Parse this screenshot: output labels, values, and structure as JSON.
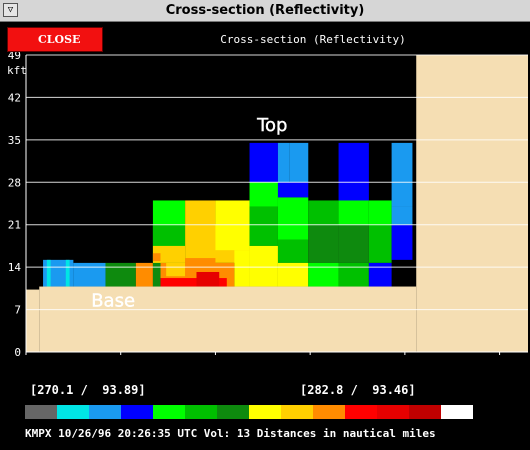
{
  "window": {
    "title": "Cross-section (Reflectivity)",
    "menu_glyph": "▽"
  },
  "toolbar": {
    "close_label": "CLOSE",
    "panel_title": "Cross-section (Reflectivity)"
  },
  "colors": {
    "background": "#000000",
    "terrain": "#f5deb3",
    "close_button": "#f21010"
  },
  "chart_data": {
    "type": "heatmap",
    "title": "",
    "xlabel": "",
    "ylabel": "kft",
    "x_ticks": [
      0,
      5,
      10,
      15,
      20,
      25
    ],
    "y_ticks": [
      0,
      7,
      14,
      21,
      28,
      35,
      42,
      49
    ],
    "y_tick_labels": [
      "0",
      "7",
      "14",
      "21",
      "28",
      "35",
      "42",
      "49"
    ],
    "xlim": [
      0,
      26.5
    ],
    "ylim": [
      0,
      49
    ],
    "grid": true,
    "annotations": [
      {
        "text": "Top",
        "x": 13,
        "y": 36.5
      },
      {
        "text": "Base",
        "x": 4.6,
        "y": 7.5
      }
    ],
    "terrain": [
      {
        "x0": 0,
        "x1": 0.7,
        "top": 10.3
      },
      {
        "x0": 0.7,
        "x1": 20.6,
        "top": 10.8
      },
      {
        "x0": 20.6,
        "x1": 26.5,
        "top": 49
      }
    ],
    "cells": [
      {
        "x0": 0.9,
        "x1": 2.5,
        "y0": 10.8,
        "y1": 15.2,
        "color": "#1a9af0"
      },
      {
        "x0": 1.1,
        "x1": 1.3,
        "y0": 10.8,
        "y1": 15.2,
        "color": "#00e5e5"
      },
      {
        "x0": 2.1,
        "x1": 2.3,
        "y0": 10.8,
        "y1": 15.2,
        "color": "#00e5e5"
      },
      {
        "x0": 2.5,
        "x1": 4.2,
        "y0": 10.8,
        "y1": 14.7,
        "color": "#1a9af0"
      },
      {
        "x0": 4.2,
        "x1": 5.8,
        "y0": 10.8,
        "y1": 14.7,
        "color": "#0e8a0e"
      },
      {
        "x0": 5.8,
        "x1": 6.7,
        "y0": 10.8,
        "y1": 14.7,
        "color": "#ff8c00"
      },
      {
        "x0": 6.7,
        "x1": 7.1,
        "y0": 10.8,
        "y1": 14.7,
        "color": "#0e8a0e"
      },
      {
        "x0": 6.7,
        "x1": 8.4,
        "y0": 14.7,
        "y1": 25.0,
        "color": "#00ff00"
      },
      {
        "x0": 6.7,
        "x1": 8.4,
        "y0": 17.5,
        "y1": 21.0,
        "color": "#00c000"
      },
      {
        "x0": 6.7,
        "x1": 8.4,
        "y0": 14.7,
        "y1": 17.5,
        "color": "#ffd000"
      },
      {
        "x0": 8.4,
        "x1": 10.0,
        "y0": 21.0,
        "y1": 25.0,
        "color": "#ffd000"
      },
      {
        "x0": 10.0,
        "x1": 11.8,
        "y0": 21.0,
        "y1": 25.0,
        "color": "#ffff00"
      },
      {
        "x0": 8.4,
        "x1": 11.8,
        "y0": 14.7,
        "y1": 21.0,
        "color": "#ffd000"
      },
      {
        "x0": 10.0,
        "x1": 11.8,
        "y0": 16.8,
        "y1": 21.0,
        "color": "#ffff00"
      },
      {
        "x0": 7.1,
        "x1": 11.0,
        "y0": 10.8,
        "y1": 14.7,
        "color": "#ff8c00"
      },
      {
        "x0": 7.4,
        "x1": 8.4,
        "y0": 12.5,
        "y1": 14.7,
        "color": "#ffd000"
      },
      {
        "x0": 8.4,
        "x1": 10.0,
        "y0": 12.3,
        "y1": 15.5,
        "color": "#ff8c00"
      },
      {
        "x0": 7.1,
        "x1": 10.6,
        "y0": 10.8,
        "y1": 12.2,
        "color": "#ff0000"
      },
      {
        "x0": 9.0,
        "x1": 10.2,
        "y0": 10.8,
        "y1": 13.2,
        "color": "#e60000"
      },
      {
        "x0": 11.0,
        "x1": 11.8,
        "y0": 10.8,
        "y1": 16.8,
        "color": "#ffff00"
      },
      {
        "x0": 6.7,
        "x1": 7.1,
        "y0": 15.0,
        "y1": 16.3,
        "color": "#ff8c00"
      },
      {
        "x0": 11.8,
        "x1": 13.3,
        "y0": 28.0,
        "y1": 34.5,
        "color": "#0000ff"
      },
      {
        "x0": 11.8,
        "x1": 13.3,
        "y0": 24.0,
        "y1": 28.0,
        "color": "#00ff00"
      },
      {
        "x0": 11.8,
        "x1": 13.3,
        "y0": 17.5,
        "y1": 24.0,
        "color": "#00c000"
      },
      {
        "x0": 11.8,
        "x1": 13.3,
        "y0": 10.8,
        "y1": 17.5,
        "color": "#ffff00"
      },
      {
        "x0": 13.3,
        "x1": 13.9,
        "y0": 28.0,
        "y1": 34.5,
        "color": "#1a9af0"
      },
      {
        "x0": 13.9,
        "x1": 14.9,
        "y0": 28.0,
        "y1": 34.5,
        "color": "#1a9af0"
      },
      {
        "x0": 13.3,
        "x1": 14.9,
        "y0": 25.5,
        "y1": 28.0,
        "color": "#0000ff"
      },
      {
        "x0": 13.3,
        "x1": 14.9,
        "y0": 18.5,
        "y1": 25.5,
        "color": "#00ff00"
      },
      {
        "x0": 13.3,
        "x1": 14.9,
        "y0": 14.7,
        "y1": 18.5,
        "color": "#00c000"
      },
      {
        "x0": 13.3,
        "x1": 14.9,
        "y0": 10.8,
        "y1": 14.7,
        "color": "#ffff00"
      },
      {
        "x0": 14.9,
        "x1": 16.5,
        "y0": 21.0,
        "y1": 25.0,
        "color": "#00c000"
      },
      {
        "x0": 14.9,
        "x1": 16.5,
        "y0": 14.7,
        "y1": 21.0,
        "color": "#0e8a0e"
      },
      {
        "x0": 14.9,
        "x1": 16.5,
        "y0": 10.8,
        "y1": 14.7,
        "color": "#00ff00"
      },
      {
        "x0": 16.5,
        "x1": 18.1,
        "y0": 25.0,
        "y1": 34.5,
        "color": "#0000ff"
      },
      {
        "x0": 16.5,
        "x1": 18.1,
        "y0": 21.0,
        "y1": 25.0,
        "color": "#00ff00"
      },
      {
        "x0": 16.5,
        "x1": 18.1,
        "y0": 14.7,
        "y1": 21.0,
        "color": "#0e8a0e"
      },
      {
        "x0": 16.5,
        "x1": 18.1,
        "y0": 10.8,
        "y1": 14.7,
        "color": "#00c000"
      },
      {
        "x0": 18.1,
        "x1": 19.3,
        "y0": 21.0,
        "y1": 25.0,
        "color": "#00ff00"
      },
      {
        "x0": 18.1,
        "x1": 19.3,
        "y0": 14.7,
        "y1": 21.0,
        "color": "#00c000"
      },
      {
        "x0": 18.1,
        "x1": 19.3,
        "y0": 10.8,
        "y1": 14.7,
        "color": "#0000ff"
      },
      {
        "x0": 19.3,
        "x1": 20.4,
        "y0": 24.0,
        "y1": 34.5,
        "color": "#1a9af0"
      },
      {
        "x0": 19.3,
        "x1": 20.4,
        "y0": 15.2,
        "y1": 21.0,
        "color": "#0000ff"
      },
      {
        "x0": 19.3,
        "x1": 20.4,
        "y0": 21.0,
        "y1": 24.0,
        "color": "#1a9af0"
      }
    ]
  },
  "coordinates": {
    "left": "[270.1 /  93.89]",
    "right": "[282.8 /  93.46]"
  },
  "color_scale": [
    "#666666",
    "#00e5e5",
    "#1a9af0",
    "#0000ff",
    "#00ff00",
    "#00c000",
    "#0e8a0e",
    "#ffff00",
    "#ffd000",
    "#ff8c00",
    "#ff0000",
    "#e60000",
    "#c00000",
    "#ffffff"
  ],
  "status": {
    "text": "KMPX 10/26/96 20:26:35 UTC Vol: 13 Distances in nautical miles"
  }
}
